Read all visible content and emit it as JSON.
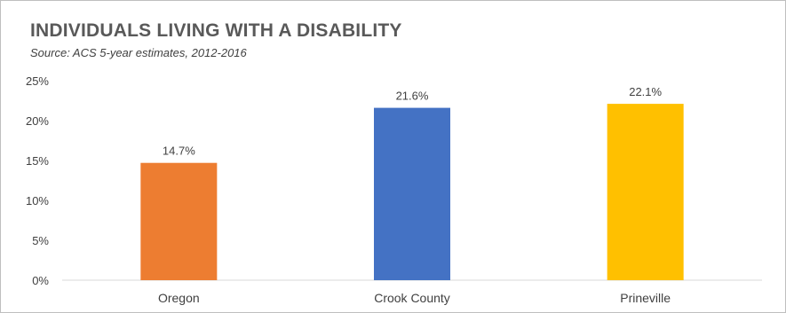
{
  "chart_data": {
    "type": "bar",
    "title": "INDIVIDUALS LIVING WITH A DISABILITY",
    "subtitle": "Source: ACS 5-year estimates, 2012-2016",
    "categories": [
      "Oregon",
      "Crook County",
      "Prineville"
    ],
    "values": [
      14.7,
      21.6,
      22.1
    ],
    "data_labels": [
      "14.7%",
      "21.6%",
      "22.1%"
    ],
    "colors": [
      "#ED7D31",
      "#4472C4",
      "#FFC000"
    ],
    "y_ticks": [
      "0%",
      "5%",
      "10%",
      "15%",
      "20%",
      "25%"
    ],
    "ylim": [
      0,
      25
    ],
    "xlabel": "",
    "ylabel": "",
    "grid": false,
    "legend": "none"
  }
}
